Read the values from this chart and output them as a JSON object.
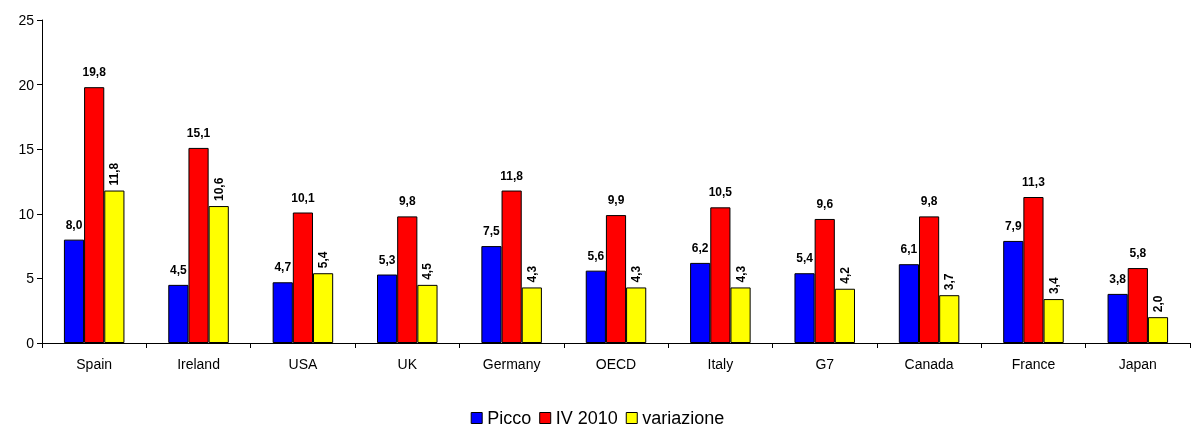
{
  "chart_data": {
    "type": "bar",
    "categories": [
      "Spain",
      "Ireland",
      "USA",
      "UK",
      "Germany",
      "OECD",
      "Italy",
      "G7",
      "Canada",
      "France",
      "Japan"
    ],
    "series": [
      {
        "name": "Picco",
        "color": "#0000ff",
        "values": [
          8.0,
          4.5,
          4.7,
          5.3,
          7.5,
          5.6,
          6.2,
          5.4,
          6.1,
          7.9,
          3.8
        ],
        "value_labels": [
          "8,0",
          "4,5",
          "4,7",
          "5,3",
          "7,5",
          "5,6",
          "6,2",
          "5,4",
          "6,1",
          "7,9",
          "3,8"
        ]
      },
      {
        "name": "IV 2010",
        "color": "#ff0000",
        "values": [
          19.8,
          15.1,
          10.1,
          9.8,
          11.8,
          9.9,
          10.5,
          9.6,
          9.8,
          11.3,
          5.8
        ],
        "value_labels": [
          "19,8",
          "15,1",
          "10,1",
          "9,8",
          "11,8",
          "9,9",
          "10,5",
          "9,6",
          "9,8",
          "11,3",
          "5,8"
        ]
      },
      {
        "name": "variazione",
        "color": "#ffff00",
        "values": [
          11.8,
          10.6,
          5.4,
          4.5,
          4.3,
          4.3,
          4.3,
          4.2,
          3.7,
          3.4,
          2.0
        ],
        "value_labels": [
          "11,8",
          "10,6",
          "5,4",
          "4,5",
          "4,3",
          "4,3",
          "4,3",
          "4,2",
          "3,7",
          "3,4",
          "2,0"
        ]
      }
    ],
    "ylim": [
      0,
      25
    ],
    "yticks": [
      0,
      5,
      10,
      15,
      20,
      25
    ],
    "grid": false,
    "legend": "bottom"
  }
}
